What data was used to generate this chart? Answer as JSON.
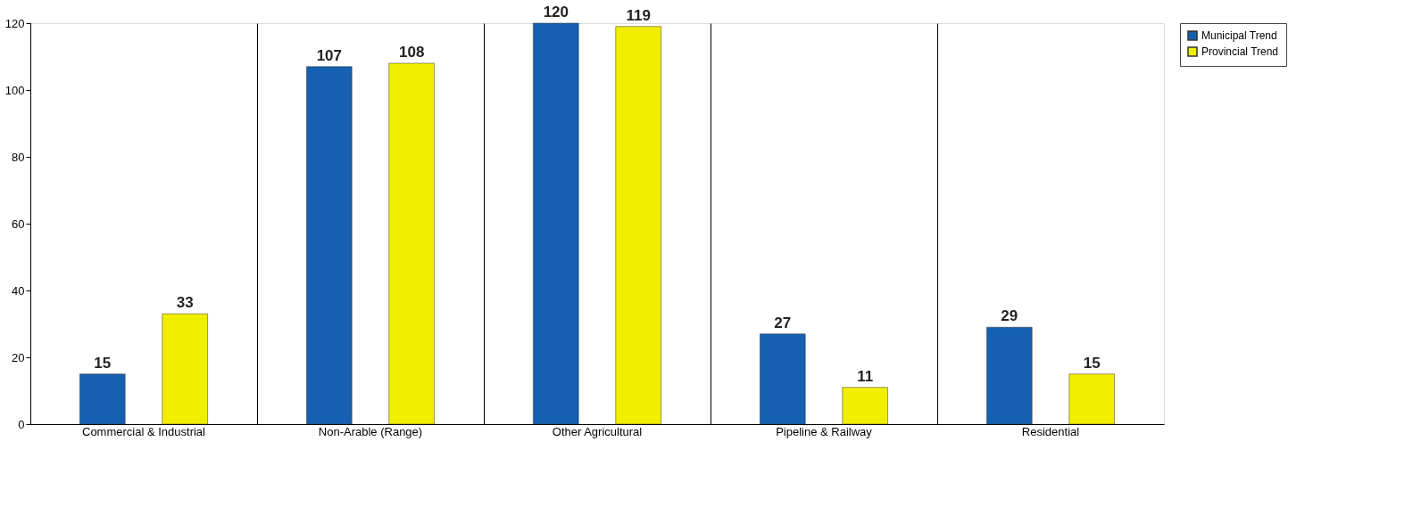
{
  "chart_data": {
    "type": "bar",
    "categories": [
      "Commercial & Industrial",
      "Non-Arable (Range)",
      "Other Agricultural",
      "Pipeline & Railway",
      "Residential"
    ],
    "series": [
      {
        "name": "Municipal Trend",
        "color": "#1560b0",
        "values": [
          15,
          107,
          120,
          27,
          29
        ]
      },
      {
        "name": "Provincial Trend",
        "color": "#f2ee00",
        "values": [
          33,
          108,
          119,
          11,
          15
        ]
      }
    ],
    "ylim": [
      0,
      120
    ],
    "yticks": [
      0,
      20,
      40,
      60,
      80,
      100,
      120
    ],
    "grid": "x",
    "legend": "right",
    "data_labels": true
  }
}
